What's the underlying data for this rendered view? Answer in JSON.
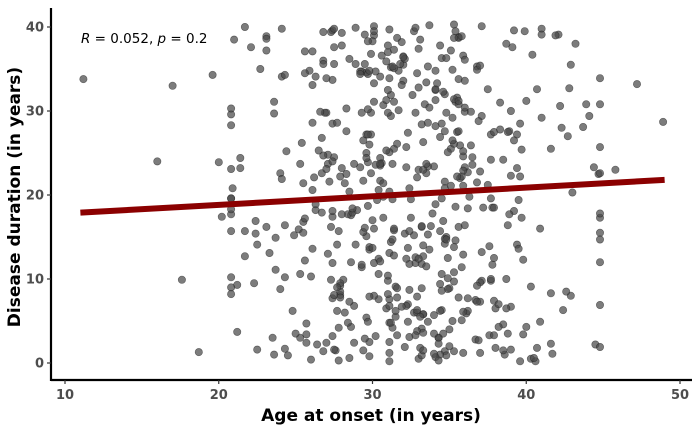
{
  "chart_data": {
    "type": "scatter",
    "title": "",
    "xlabel": "Age at onset (in years)",
    "ylabel": "Disease duration (in years)",
    "xlim": [
      10,
      50
    ],
    "ylim": [
      0,
      40
    ],
    "xticks": [
      10,
      20,
      30,
      40,
      50
    ],
    "yticks": [
      0,
      10,
      20,
      30,
      40
    ],
    "grid": false,
    "annotation": {
      "R_label": "R",
      "R_value": "0.052",
      "p_label": "p",
      "p_value": "0.2"
    },
    "regression": {
      "x": [
        11,
        49
      ],
      "y": [
        17.9,
        21.8
      ],
      "color": "#8b0000"
    },
    "point_color": "#4a4a4a",
    "n_points": 600,
    "anchor_points": [
      [
        11.2,
        33.8
      ],
      [
        16.0,
        24.0
      ],
      [
        17.0,
        33.0
      ],
      [
        17.6,
        9.9
      ],
      [
        18.7,
        1.3
      ],
      [
        19.6,
        34.3
      ],
      [
        20.0,
        23.9
      ],
      [
        20.2,
        17.4
      ],
      [
        21.7,
        40.0
      ],
      [
        22.1,
        37.6
      ],
      [
        35.3,
        40.3
      ],
      [
        37.1,
        40.1
      ],
      [
        39.6,
        0.2
      ],
      [
        41.6,
        2.3
      ],
      [
        43.2,
        38.0
      ],
      [
        44.5,
        2.2
      ],
      [
        45.8,
        23.0
      ],
      [
        47.2,
        33.2
      ],
      [
        48.9,
        28.7
      ],
      [
        30.1,
        40.1
      ],
      [
        33.0,
        0.5
      ],
      [
        27.4,
        39.6
      ],
      [
        24.1,
        39.8
      ],
      [
        33.7,
        40.2
      ],
      [
        31.1,
        0.2
      ]
    ]
  }
}
